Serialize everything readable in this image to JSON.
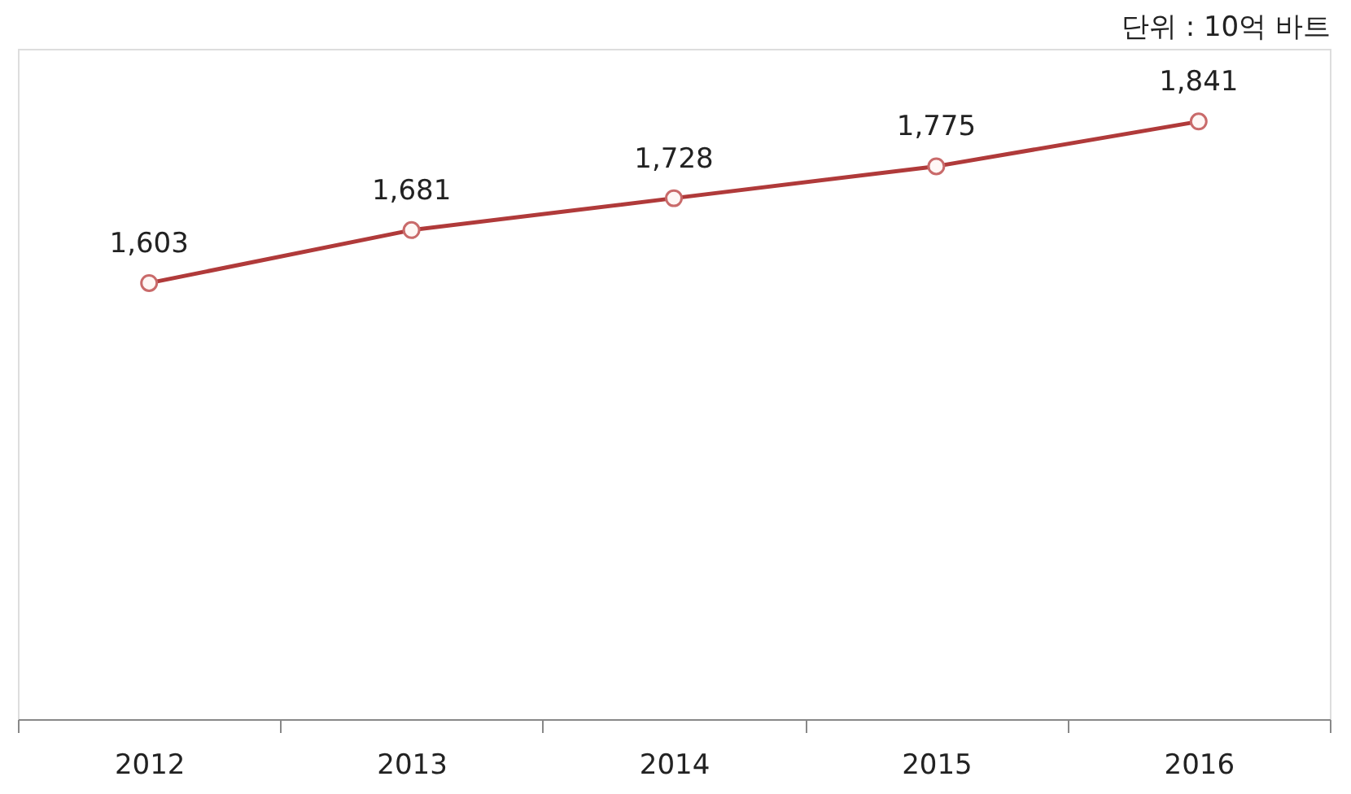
{
  "chart_data": {
    "type": "line",
    "categories": [
      "2012",
      "2013",
      "2014",
      "2015",
      "2016"
    ],
    "series": [
      {
        "color": "#b03a3a",
        "values": [
          1603,
          1681,
          1728,
          1775,
          1841
        ],
        "value_labels": [
          "1,603",
          "1,681",
          "1,728",
          "1,775",
          "1,841"
        ]
      }
    ],
    "tick_labels": "x",
    "marker": "circle",
    "line_style": "solid",
    "grid": false,
    "annotations": [
      "단위 : 10억 바트"
    ]
  }
}
